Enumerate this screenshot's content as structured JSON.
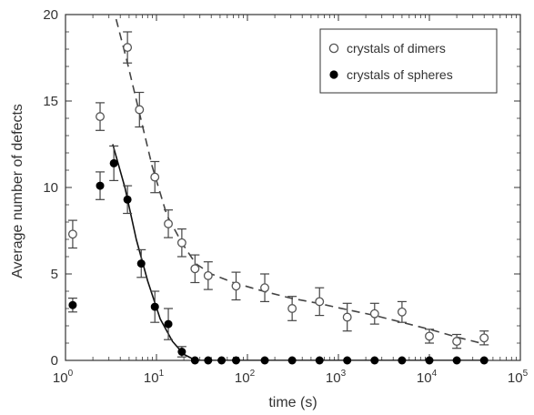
{
  "chart_data": {
    "type": "scatter",
    "x_scale": "log",
    "xlim": [
      1,
      100000
    ],
    "ylim": [
      0,
      20
    ],
    "xlabel": "time (s)",
    "ylabel": "Average number of defects",
    "x_ticks": [
      {
        "value": 1,
        "base": "10",
        "exp": "0"
      },
      {
        "value": 10,
        "base": "10",
        "exp": "1"
      },
      {
        "value": 100,
        "base": "10",
        "exp": "2"
      },
      {
        "value": 1000,
        "base": "10",
        "exp": "3"
      },
      {
        "value": 10000,
        "base": "10",
        "exp": "4"
      },
      {
        "value": 100000,
        "base": "10",
        "exp": "5"
      }
    ],
    "y_ticks": [
      0,
      5,
      10,
      15,
      20
    ],
    "grid": false,
    "legend": {
      "placement": "top-right"
    },
    "series": [
      {
        "name": "crystals of dimers",
        "marker": "open-circle",
        "color": "#555555",
        "points": [
          {
            "x": 1.2,
            "y": 7.3,
            "err": 0.8
          },
          {
            "x": 2.4,
            "y": 14.1,
            "err": 0.8
          },
          {
            "x": 4.8,
            "y": 18.1,
            "err": 0.9
          },
          {
            "x": 6.5,
            "y": 14.5,
            "err": 1.0
          },
          {
            "x": 9.6,
            "y": 10.6,
            "err": 0.9
          },
          {
            "x": 13.5,
            "y": 7.9,
            "err": 0.8
          },
          {
            "x": 19,
            "y": 6.8,
            "err": 0.8
          },
          {
            "x": 26.5,
            "y": 5.3,
            "err": 0.8
          },
          {
            "x": 37,
            "y": 4.9,
            "err": 0.8
          },
          {
            "x": 75,
            "y": 4.3,
            "err": 0.8
          },
          {
            "x": 155,
            "y": 4.2,
            "err": 0.8
          },
          {
            "x": 310,
            "y": 3.0,
            "err": 0.7
          },
          {
            "x": 620,
            "y": 3.4,
            "err": 0.8
          },
          {
            "x": 1250,
            "y": 2.5,
            "err": 0.8
          },
          {
            "x": 2500,
            "y": 2.7,
            "err": 0.6
          },
          {
            "x": 5000,
            "y": 2.8,
            "err": 0.6
          },
          {
            "x": 10000,
            "y": 1.4,
            "err": 0.4
          },
          {
            "x": 20000,
            "y": 1.1,
            "err": 0.4
          },
          {
            "x": 40000,
            "y": 1.3,
            "err": 0.4
          }
        ],
        "fit": [
          [
            3.3,
            20.5
          ],
          [
            4.8,
            17.2
          ],
          [
            6.5,
            14.3
          ],
          [
            9,
            11.2
          ],
          [
            13,
            8.4
          ],
          [
            19,
            6.8
          ],
          [
            27,
            5.6
          ],
          [
            40,
            5.0
          ],
          [
            70,
            4.5
          ],
          [
            150,
            4.0
          ],
          [
            300,
            3.6
          ],
          [
            600,
            3.3
          ],
          [
            1200,
            2.95
          ],
          [
            2500,
            2.6
          ],
          [
            5000,
            2.2
          ],
          [
            10000,
            1.8
          ],
          [
            20000,
            1.35
          ],
          [
            40000,
            0.95
          ]
        ]
      },
      {
        "name": "crystals of spheres",
        "marker": "filled-circle",
        "color": "#000000",
        "points": [
          {
            "x": 1.2,
            "y": 3.2,
            "err": 0.4
          },
          {
            "x": 2.4,
            "y": 10.1,
            "err": 0.8
          },
          {
            "x": 3.4,
            "y": 11.4,
            "err": 1.0
          },
          {
            "x": 4.8,
            "y": 9.3,
            "err": 0.8
          },
          {
            "x": 6.8,
            "y": 5.6,
            "err": 0.8
          },
          {
            "x": 9.6,
            "y": 3.1,
            "err": 0.9
          },
          {
            "x": 13.5,
            "y": 2.1,
            "err": 0.9
          },
          {
            "x": 19,
            "y": 0.5,
            "err": 0.3
          },
          {
            "x": 26.5,
            "y": 0.0,
            "err": 0
          },
          {
            "x": 37,
            "y": 0.0,
            "err": 0
          },
          {
            "x": 52,
            "y": 0.0,
            "err": 0
          },
          {
            "x": 75,
            "y": 0.0,
            "err": 0
          },
          {
            "x": 155,
            "y": 0.0,
            "err": 0
          },
          {
            "x": 310,
            "y": 0.0,
            "err": 0
          },
          {
            "x": 620,
            "y": 0.0,
            "err": 0
          },
          {
            "x": 1250,
            "y": 0.0,
            "err": 0
          },
          {
            "x": 2500,
            "y": 0.0,
            "err": 0
          },
          {
            "x": 5000,
            "y": 0.0,
            "err": 0
          },
          {
            "x": 10000,
            "y": 0.0,
            "err": 0
          },
          {
            "x": 20000,
            "y": 0.0,
            "err": 0
          },
          {
            "x": 40000,
            "y": 0.0,
            "err": 0
          }
        ],
        "fit": [
          [
            3.3,
            12.5
          ],
          [
            4.5,
            10.0
          ],
          [
            6,
            7.0
          ],
          [
            8,
            4.6
          ],
          [
            11,
            2.4
          ],
          [
            15,
            1.1
          ],
          [
            20,
            0.35
          ],
          [
            27,
            0.0
          ],
          [
            40000,
            0.0
          ]
        ]
      }
    ]
  }
}
